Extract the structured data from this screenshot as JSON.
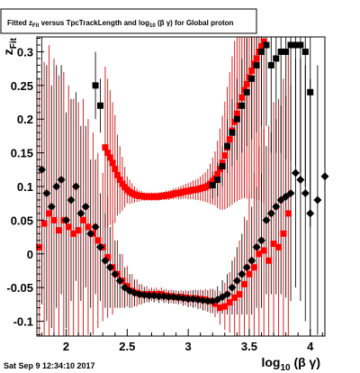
{
  "chart_data": {
    "type": "scatter",
    "title": "Fitted  z_Fit versus TpcTrackLength and log_10(βγ) for Global proton",
    "title_parts": {
      "pre": "Fitted  z",
      "sub1": "Fit",
      "mid": " versus TpcTrackLength and log",
      "sub2": "10",
      "post": " (β γ) for Global proton"
    },
    "xlabel": "log_10 (β γ)",
    "xlabel_parts": {
      "pre": "log",
      "sub": "10",
      "post": " (β γ)"
    },
    "ylabel": "z_Fit",
    "ylabel_parts": {
      "pre": "z",
      "sub": "Fit"
    },
    "xlim": [
      1.76,
      4.12
    ],
    "ylim": [
      -0.122,
      0.322
    ],
    "xticks": [
      2,
      2.5,
      3,
      3.5,
      4
    ],
    "xtick_labels": [
      "2",
      "2.5",
      "3",
      "3.5",
      "4"
    ],
    "yticks": [
      -0.1,
      -0.05,
      0,
      0.05,
      0.1,
      0.15,
      0.2,
      0.25,
      0.3
    ],
    "ytick_labels": [
      "-0.1",
      "-0.05",
      "0",
      "0.05",
      "0.1",
      "0.15",
      "0.2",
      "0.25",
      "0.3"
    ],
    "grid": false,
    "legend": "none",
    "colors": {
      "series_red": "#ff0000",
      "series_black": "#000000",
      "errorbar_red": "#cc0000",
      "errorbar_black": "#000000"
    },
    "series": [
      {
        "color": "#ff0000",
        "marker": "square",
        "x": [
          2.32,
          2.34,
          2.36,
          2.38,
          2.4,
          2.42,
          2.44,
          2.46,
          2.48,
          2.5,
          2.52,
          2.54,
          2.56,
          2.58,
          2.6,
          2.62,
          2.64,
          2.66,
          2.68,
          2.7,
          2.72,
          2.74,
          2.76,
          2.78,
          2.8,
          2.82,
          2.84,
          2.86,
          2.88,
          2.9,
          2.92,
          2.94,
          2.96,
          2.98,
          3.0,
          3.02,
          3.04,
          3.06,
          3.08,
          3.1,
          3.12,
          3.14,
          3.16,
          3.18,
          3.2,
          3.22,
          3.24,
          3.26,
          3.28,
          3.3,
          3.32,
          3.34,
          3.36,
          3.38,
          3.4,
          3.42,
          3.44,
          3.46,
          3.48,
          3.5,
          3.52,
          3.54,
          3.56,
          3.58,
          3.6,
          3.62
        ],
        "y": [
          0.158,
          0.15,
          0.143,
          0.135,
          0.126,
          0.117,
          0.11,
          0.104,
          0.099,
          0.095,
          0.092,
          0.09,
          0.088,
          0.087,
          0.086,
          0.086,
          0.085,
          0.085,
          0.085,
          0.085,
          0.085,
          0.085,
          0.085,
          0.086,
          0.086,
          0.087,
          0.087,
          0.088,
          0.089,
          0.09,
          0.09,
          0.091,
          0.092,
          0.093,
          0.093,
          0.094,
          0.095,
          0.095,
          0.096,
          0.097,
          0.098,
          0.099,
          0.101,
          0.104,
          0.108,
          0.112,
          0.118,
          0.126,
          0.135,
          0.146,
          0.158,
          0.17,
          0.183,
          0.196,
          0.208,
          0.22,
          0.232,
          0.243,
          0.252,
          0.262,
          0.272,
          0.282,
          0.29,
          0.3,
          0.308,
          0.315
        ],
        "err": [
          0.12,
          0.11,
          0.1,
          0.09,
          0.08,
          0.06,
          0.05,
          0.04,
          0.03,
          0.02,
          0.018,
          0.015,
          0.012,
          0.01,
          0.008,
          0.007,
          0.006,
          0.006,
          0.006,
          0.006,
          0.006,
          0.006,
          0.006,
          0.006,
          0.006,
          0.007,
          0.007,
          0.007,
          0.008,
          0.008,
          0.009,
          0.01,
          0.01,
          0.011,
          0.012,
          0.013,
          0.014,
          0.015,
          0.016,
          0.018,
          0.02,
          0.022,
          0.025,
          0.03,
          0.035,
          0.04,
          0.05,
          0.06,
          0.07,
          0.08,
          0.09,
          0.1,
          0.11,
          0.12,
          0.13,
          0.14,
          0.15,
          0.16,
          0.17,
          0.18,
          0.19,
          0.2,
          0.21,
          0.22,
          0.23,
          0.24
        ]
      },
      {
        "color": "#ff0000",
        "marker": "square",
        "x": [
          1.78,
          1.82,
          1.86,
          1.9,
          1.94,
          1.98,
          2.02,
          2.06,
          2.1,
          2.14,
          2.18,
          2.22,
          2.26,
          2.3,
          2.34,
          2.38,
          2.42,
          2.46,
          2.5,
          2.54,
          2.58,
          2.62,
          2.66,
          2.7,
          2.74,
          2.78,
          2.82,
          2.86,
          2.9,
          2.94,
          2.98,
          3.02,
          3.06,
          3.1,
          3.14,
          3.18,
          3.22,
          3.26,
          3.3,
          3.34,
          3.38,
          3.42,
          3.46,
          3.5,
          3.54,
          3.58,
          3.62,
          3.66,
          3.7,
          3.74,
          3.78,
          3.82
        ],
        "y": [
          0.01,
          0.045,
          0.06,
          0.05,
          0.035,
          0.05,
          0.04,
          0.03,
          0.035,
          0.05,
          0.04,
          0.03,
          0.02,
          0.01,
          -0.005,
          -0.02,
          -0.03,
          -0.04,
          -0.048,
          -0.055,
          -0.058,
          -0.06,
          -0.06,
          -0.06,
          -0.06,
          -0.06,
          -0.062,
          -0.063,
          -0.064,
          -0.064,
          -0.065,
          -0.066,
          -0.066,
          -0.067,
          -0.068,
          -0.07,
          -0.074,
          -0.08,
          -0.078,
          -0.072,
          -0.065,
          -0.06,
          -0.045,
          -0.03,
          -0.02,
          0.0,
          0.005,
          -0.01,
          0.015,
          0.01,
          0.03,
          0.06
        ],
        "err": [
          0.25,
          0.24,
          0.25,
          0.24,
          0.23,
          0.22,
          0.21,
          0.2,
          0.19,
          0.18,
          0.16,
          0.15,
          0.13,
          0.11,
          0.09,
          0.07,
          0.05,
          0.04,
          0.03,
          0.025,
          0.02,
          0.015,
          0.012,
          0.01,
          0.01,
          0.01,
          0.01,
          0.01,
          0.01,
          0.01,
          0.011,
          0.012,
          0.013,
          0.014,
          0.016,
          0.018,
          0.02,
          0.025,
          0.035,
          0.045,
          0.06,
          0.08,
          0.1,
          0.12,
          0.14,
          0.16,
          0.18,
          0.2,
          0.21,
          0.22,
          0.23,
          0.24
        ]
      },
      {
        "color": "#000000",
        "marker": "diamond",
        "x": [
          1.8,
          1.84,
          1.88,
          1.92,
          1.96,
          2.0,
          2.04,
          2.08,
          2.12,
          2.16,
          2.2,
          2.24,
          2.28,
          2.32,
          2.36,
          2.4,
          2.44,
          2.48,
          2.52,
          2.56,
          2.6,
          2.64,
          2.68,
          2.72,
          2.76,
          2.8,
          2.84,
          2.88,
          2.92,
          2.96,
          3.0,
          3.04,
          3.08,
          3.12,
          3.16,
          3.2,
          3.24,
          3.28,
          3.32,
          3.36,
          3.4,
          3.44,
          3.48,
          3.52,
          3.56,
          3.6,
          3.64,
          3.68,
          3.72,
          3.76,
          3.8,
          3.84,
          3.88,
          3.92,
          3.96,
          4.0,
          4.06,
          4.12
        ],
        "y": [
          0.125,
          0.09,
          0.07,
          0.1,
          0.11,
          0.05,
          0.08,
          0.1,
          0.06,
          0.07,
          0.03,
          0.04,
          0.01,
          -0.01,
          -0.02,
          -0.03,
          -0.04,
          -0.05,
          -0.055,
          -0.058,
          -0.06,
          -0.061,
          -0.062,
          -0.062,
          -0.063,
          -0.063,
          -0.064,
          -0.064,
          -0.065,
          -0.066,
          -0.067,
          -0.067,
          -0.068,
          -0.069,
          -0.07,
          -0.07,
          -0.068,
          -0.064,
          -0.06,
          -0.05,
          -0.04,
          -0.03,
          -0.02,
          -0.01,
          0.01,
          0.02,
          0.05,
          0.06,
          0.07,
          0.08,
          0.085,
          0.09,
          0.12,
          0.11,
          0.09,
          0.06,
          0.08,
          0.115
        ],
        "err": [
          0.2,
          0.19,
          0.18,
          0.18,
          0.17,
          0.16,
          0.15,
          0.14,
          0.13,
          0.12,
          0.11,
          0.1,
          0.08,
          0.07,
          0.06,
          0.05,
          0.04,
          0.03,
          0.025,
          0.02,
          0.015,
          0.012,
          0.01,
          0.01,
          0.01,
          0.01,
          0.01,
          0.01,
          0.01,
          0.011,
          0.012,
          0.013,
          0.014,
          0.015,
          0.016,
          0.018,
          0.02,
          0.025,
          0.03,
          0.04,
          0.05,
          0.06,
          0.07,
          0.08,
          0.09,
          0.1,
          0.11,
          0.12,
          0.13,
          0.14,
          0.15,
          0.16,
          0.17,
          0.18,
          0.19,
          0.2,
          0.2,
          0.2
        ]
      },
      {
        "color": "#000000",
        "marker": "square",
        "x": [
          2.24,
          2.28,
          3.2,
          3.24,
          3.28,
          3.32,
          3.36,
          3.4,
          3.44,
          3.48,
          3.52,
          3.56,
          3.6,
          3.64,
          3.68,
          3.72,
          3.76,
          3.8,
          3.84,
          3.88,
          3.92,
          3.96,
          4.0
        ],
        "y": [
          0.25,
          0.22,
          0.102,
          0.11,
          0.13,
          0.16,
          0.18,
          0.2,
          0.22,
          0.24,
          0.26,
          0.28,
          0.3,
          0.31,
          0.28,
          0.29,
          0.3,
          0.3,
          0.31,
          0.31,
          0.31,
          0.3,
          0.24
        ],
        "err": [
          0.05,
          0.04,
          0.02,
          0.025,
          0.03,
          0.04,
          0.05,
          0.06,
          0.07,
          0.08,
          0.09,
          0.1,
          0.11,
          0.12,
          0.13,
          0.14,
          0.15,
          0.16,
          0.17,
          0.18,
          0.19,
          0.2,
          0.2
        ]
      }
    ]
  },
  "footer": {
    "timestamp": "Sat Sep  9 12:34:10 2017"
  }
}
